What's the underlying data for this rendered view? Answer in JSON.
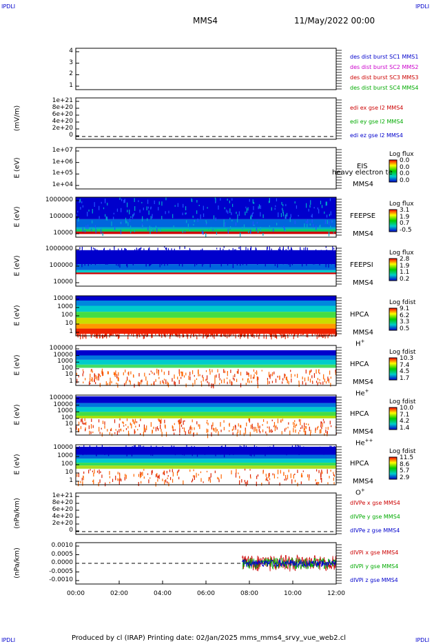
{
  "corners": {
    "tl": "IPDLI",
    "tr": "IPDLI",
    "bl": "IPDLI",
    "br": "IPDLI"
  },
  "header": {
    "spacecraft": "MMS4",
    "date": "11/May/2022 00:00"
  },
  "footer": "Produced by cl (IRAP)   Printing date: 02/Jan/2025   mms_mms4_srvy_vue_web2.cl",
  "x_ticks": [
    "00:00",
    "02:00",
    "04:00",
    "06:00",
    "08:00",
    "10:00",
    "12:00"
  ],
  "panels": [
    {
      "id": "p1",
      "ylabel": "",
      "yticks": [
        "4",
        "3",
        "2",
        "1"
      ],
      "legend": [
        {
          "text": "des dist burst SC1 MMS1",
          "color": "#0000cc"
        },
        {
          "text": "des dist burst SC2 MMS2",
          "color": "#cc00cc"
        },
        {
          "text": "des dist burst SC3 MMS3",
          "color": "#cc0000"
        },
        {
          "text": "des dist burst SC4 MMS4",
          "color": "#00aa00"
        }
      ]
    },
    {
      "id": "p2",
      "ylabel": "(mV/m)",
      "yticks": [
        "1e+21",
        "8e+20",
        "6e+20",
        "4e+20",
        "2e+20",
        "0"
      ],
      "legend": [
        {
          "text": "edi ex gse l2 MMS4",
          "color": "#cc0000"
        },
        {
          "text": "edi ey gse l2 MMS4",
          "color": "#00aa00"
        },
        {
          "text": "edi ez gse l2 MMS4",
          "color": "#0000cc"
        }
      ]
    },
    {
      "id": "p3",
      "ylabel": "E (eV)",
      "yticks": [
        "1e+07",
        "1e+06",
        "1e+05",
        "1e+04"
      ],
      "inst": [
        "EIS",
        "MMS4"
      ],
      "overlay": "heavy electron te",
      "cbar": {
        "title": "Log flux",
        "vals": [
          "0.0",
          "0.0",
          "0.0",
          "0.0"
        ]
      }
    },
    {
      "id": "p4",
      "ylabel": "E (eV)",
      "yticks": [
        "1000000",
        "100000",
        "10000"
      ],
      "inst": [
        "FEEPSE",
        "MMS4"
      ],
      "cbar": {
        "title": "Log flux",
        "vals": [
          "3.1",
          "1.9",
          "0.7",
          "-0.5"
        ]
      }
    },
    {
      "id": "p5",
      "ylabel": "E (eV)",
      "yticks": [
        "1000000",
        "100000",
        "10000"
      ],
      "inst": [
        "FEEPSI",
        "MMS4"
      ],
      "cbar": {
        "title": "Log flux",
        "vals": [
          "2.8",
          "1.9",
          "1.1",
          "0.2"
        ]
      }
    },
    {
      "id": "p6",
      "ylabel": "E (eV)",
      "yticks": [
        "10000",
        "1000",
        "100",
        "10",
        "1"
      ],
      "inst": [
        "HPCA",
        "MMS4"
      ],
      "species": "H",
      "sup": "+",
      "cbar": {
        "title": "Log fdist",
        "vals": [
          "9.1",
          "6.2",
          "3.3",
          "0.5"
        ]
      }
    },
    {
      "id": "p7",
      "ylabel": "E (eV)",
      "yticks": [
        "100000",
        "10000",
        "1000",
        "100",
        "10",
        "1"
      ],
      "inst": [
        "HPCA",
        "MMS4"
      ],
      "species": "He",
      "sup": "+",
      "cbar": {
        "title": "Log fdist",
        "vals": [
          "10.3",
          "7.4",
          "4.5",
          "1.7"
        ]
      }
    },
    {
      "id": "p8",
      "ylabel": "E (eV)",
      "yticks": [
        "100000",
        "10000",
        "1000",
        "100",
        "10",
        "1"
      ],
      "inst": [
        "HPCA",
        "MMS4"
      ],
      "species": "He",
      "sup": "++",
      "cbar": {
        "title": "Log fdist",
        "vals": [
          "10.0",
          "7.1",
          "4.2",
          "1.4"
        ]
      }
    },
    {
      "id": "p9",
      "ylabel": "E (eV)",
      "yticks": [
        "10000",
        "1000",
        "100",
        "10",
        "1"
      ],
      "inst": [
        "HPCA",
        "MMS4"
      ],
      "species": "O",
      "sup": "+",
      "cbar": {
        "title": "Log fdist",
        "vals": [
          "11.5",
          "8.6",
          "5.7",
          "2.9"
        ]
      }
    },
    {
      "id": "p10",
      "ylabel": "(nPa/km)",
      "yticks": [
        "1e+21",
        "8e+20",
        "6e+20",
        "4e+20",
        "2e+20",
        "0"
      ],
      "legend": [
        {
          "text": "dIVPe x gse MMS4",
          "color": "#cc0000"
        },
        {
          "text": "dIVPe y gse MMS4",
          "color": "#00aa00"
        },
        {
          "text": "dIVPe z gse MMS4",
          "color": "#0000cc"
        }
      ]
    },
    {
      "id": "p11",
      "ylabel": "(nPa/km)",
      "yticks": [
        "0.0010",
        "0.0005",
        "0.0000",
        "-0.0005",
        "-0.0010"
      ],
      "legend": [
        {
          "text": "dIVPi x gse MMS4",
          "color": "#cc0000"
        },
        {
          "text": "dIVPi y gse MMS4",
          "color": "#00aa00"
        },
        {
          "text": "dIVPi z gse MMS4",
          "color": "#0000cc"
        }
      ]
    }
  ],
  "chart_data": {
    "type": "heatmap",
    "x_range": [
      "00:00",
      "12:00"
    ],
    "colormap": [
      "#0000cc",
      "#00cccc",
      "#00cc00",
      "#ffff00",
      "#ff0000"
    ],
    "line_series_start": "07:40"
  }
}
